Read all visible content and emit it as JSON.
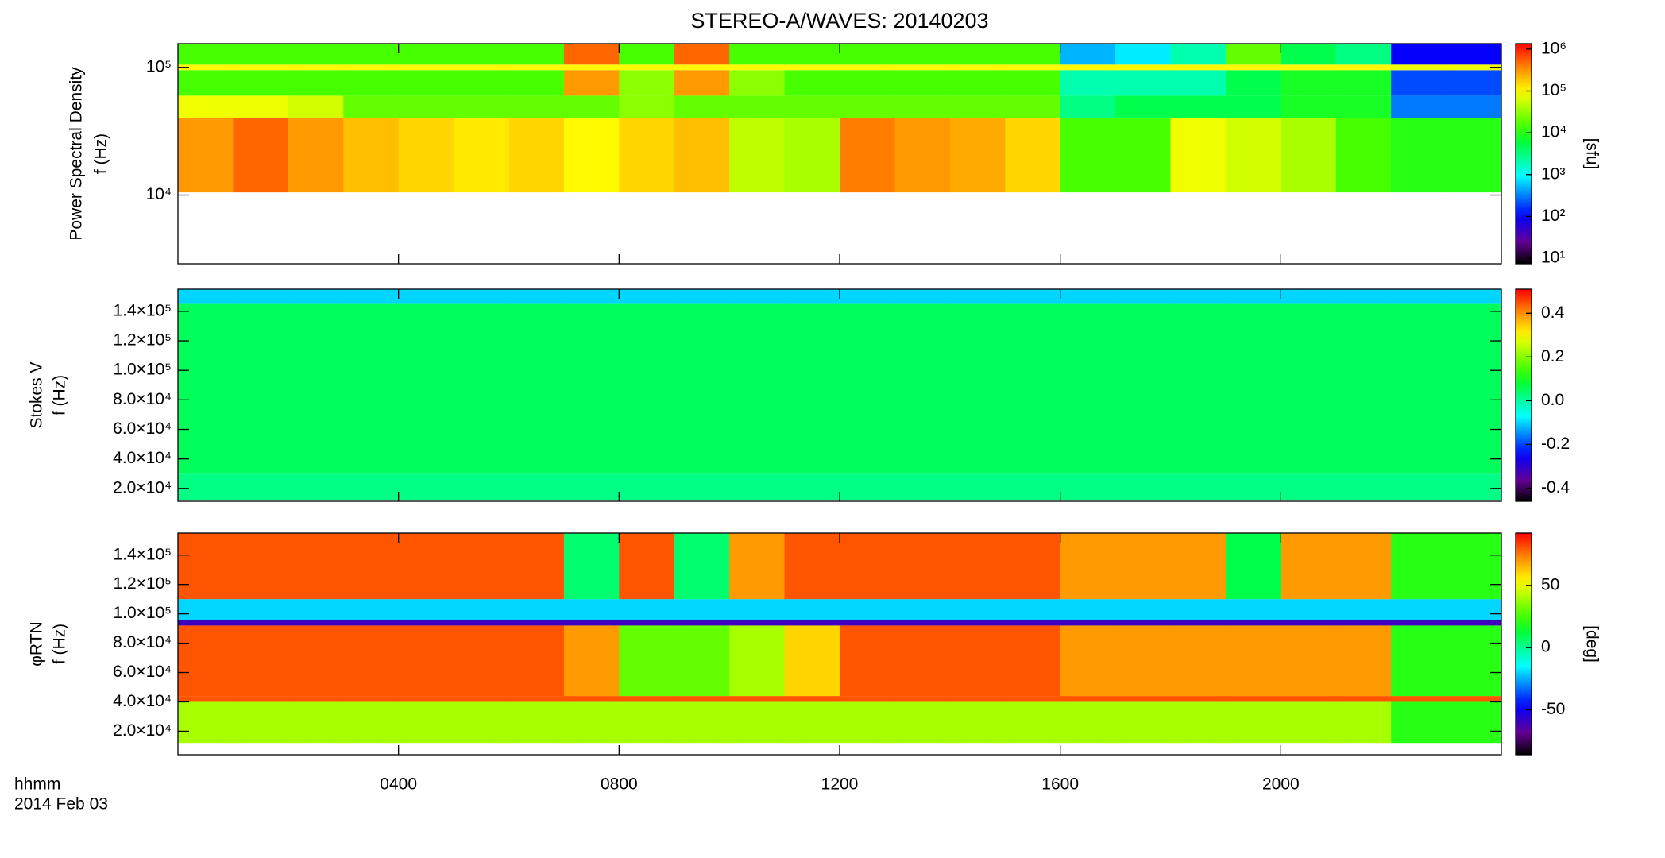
{
  "chart_data": [
    {
      "type": "heatmap",
      "title": "STEREO-A/WAVES: 20140203",
      "ylabel": [
        "Power Spectral Density",
        "f (Hz)"
      ],
      "ylog": true,
      "ylim": [
        2900,
        153000
      ],
      "yticks": [
        {
          "value": 10000,
          "label": "10⁴"
        },
        {
          "value": 100000,
          "label": "10⁵"
        }
      ],
      "xlim": [
        0,
        24
      ],
      "x_edges": [
        0,
        1,
        2,
        3,
        4,
        5,
        6,
        7,
        8,
        9,
        10,
        11,
        12,
        13,
        14,
        15,
        16,
        17,
        18,
        19,
        20,
        21,
        22,
        23,
        24
      ],
      "y_edges": [
        10500,
        40000,
        60000,
        95000,
        105000,
        153000
      ],
      "z": [
        [
          300000,
          500000,
          300000,
          200000,
          150000,
          120000,
          150000,
          100000,
          150000,
          200000,
          50000,
          40000,
          400000,
          300000,
          250000,
          150000,
          15000,
          15000,
          80000,
          60000,
          40000,
          15000,
          10000,
          10000
        ],
        [
          80000,
          80000,
          60000,
          20000,
          20000,
          20000,
          20000,
          20000,
          30000,
          20000,
          20000,
          20000,
          20000,
          20000,
          20000,
          20000,
          3000,
          5000,
          5000,
          5000,
          8000,
          8000,
          300,
          300
        ],
        [
          15000,
          15000,
          15000,
          15000,
          15000,
          15000,
          15000,
          300000,
          30000,
          300000,
          30000,
          15000,
          15000,
          15000,
          15000,
          15000,
          2000,
          2000,
          2000,
          5000,
          8000,
          8000,
          200,
          200
        ],
        [
          100000,
          100000,
          100000,
          100000,
          100000,
          100000,
          100000,
          100000,
          100000,
          100000,
          100000,
          100000,
          100000,
          100000,
          100000,
          100000,
          100000,
          100000,
          100000,
          100000,
          100000,
          100000,
          80000,
          80000
        ],
        [
          15000,
          15000,
          15000,
          15000,
          15000,
          15000,
          15000,
          500000,
          15000,
          500000,
          15000,
          15000,
          15000,
          15000,
          15000,
          15000,
          500,
          800,
          2000,
          20000,
          5000,
          3000,
          100,
          100
        ]
      ],
      "zlog": true,
      "zlim": [
        7.4,
        1350000
      ],
      "zticks": [
        {
          "value": 10,
          "label": "10¹"
        },
        {
          "value": 100,
          "label": "10²"
        },
        {
          "value": 1000,
          "label": "10³"
        },
        {
          "value": 10000,
          "label": "10⁴"
        },
        {
          "value": 100000,
          "label": "10⁵"
        },
        {
          "value": 1000000,
          "label": "10⁶"
        }
      ],
      "zlabel": "[sfu]"
    },
    {
      "type": "heatmap",
      "ylabel": [
        "Stokes V",
        "f (Hz)"
      ],
      "ylog": false,
      "ylim": [
        11300,
        155000
      ],
      "yticks": [
        {
          "value": 20000,
          "label": "2.0×10⁴"
        },
        {
          "value": 40000,
          "label": "4.0×10⁴"
        },
        {
          "value": 60000,
          "label": "6.0×10⁴"
        },
        {
          "value": 80000,
          "label": "8.0×10⁴"
        },
        {
          "value": 100000,
          "label": "1.0×10⁵"
        },
        {
          "value": 120000,
          "label": "1.2×10⁵"
        },
        {
          "value": 140000,
          "label": "1.4×10⁵"
        }
      ],
      "xlim": [
        0,
        24
      ],
      "x_edges": [
        0,
        1,
        2,
        3,
        4,
        5,
        6,
        7,
        8,
        9,
        10,
        11,
        12,
        13,
        14,
        15,
        16,
        17,
        18,
        19,
        20,
        21,
        22,
        23,
        24
      ],
      "y_edges": [
        12000,
        30000,
        145000,
        155000
      ],
      "z": [
        [
          0.02,
          0.02,
          0.02,
          0.02,
          0.02,
          0.02,
          0.02,
          0.02,
          0.02,
          0.02,
          0.02,
          0.02,
          0.02,
          0.02,
          0.02,
          0.02,
          0.02,
          0.02,
          0.02,
          0.02,
          0.02,
          0.02,
          0.02,
          0.02
        ],
        [
          0.05,
          0.05,
          0.05,
          0.05,
          0.05,
          0.05,
          0.05,
          0.05,
          0.05,
          0.05,
          0.05,
          0.05,
          0.05,
          0.05,
          0.05,
          0.05,
          0.05,
          0.05,
          0.05,
          0.05,
          0.05,
          0.05,
          0.05,
          0.05
        ],
        [
          -0.1,
          -0.1,
          -0.1,
          -0.1,
          -0.1,
          -0.1,
          -0.1,
          -0.1,
          -0.1,
          -0.1,
          -0.1,
          -0.1,
          -0.1,
          -0.1,
          -0.1,
          -0.1,
          -0.1,
          -0.1,
          -0.1,
          -0.1,
          -0.1,
          -0.1,
          -0.1,
          -0.1
        ]
      ],
      "zlog": false,
      "zlim": [
        -0.46,
        0.51
      ],
      "zticks": [
        -0.4,
        -0.2,
        {
          "value": 0,
          "label": "0.0"
        },
        0.2,
        0.4
      ],
      "zlabel": ""
    },
    {
      "type": "heatmap",
      "ylabel": [
        "φRTN",
        "f (Hz)"
      ],
      "ylog": false,
      "ylim": [
        4000,
        155000
      ],
      "yticks": [
        {
          "value": 20000,
          "label": "2.0×10⁴"
        },
        {
          "value": 40000,
          "label": "4.0×10⁴"
        },
        {
          "value": 60000,
          "label": "6.0×10⁴"
        },
        {
          "value": 80000,
          "label": "8.0×10⁴"
        },
        {
          "value": 100000,
          "label": "1.0×10⁵"
        },
        {
          "value": 120000,
          "label": "1.2×10⁵"
        },
        {
          "value": 140000,
          "label": "1.4×10⁵"
        }
      ],
      "xlim": [
        0,
        24
      ],
      "xticks": [
        {
          "value": 4,
          "label": "0400"
        },
        {
          "value": 8,
          "label": "0800"
        },
        {
          "value": 12,
          "label": "1200"
        },
        {
          "value": 16,
          "label": "1600"
        },
        {
          "value": 20,
          "label": "2000"
        }
      ],
      "xlabel": "hhmm",
      "date": "2014 Feb 03",
      "x_edges": [
        0,
        1,
        2,
        3,
        4,
        5,
        6,
        7,
        8,
        9,
        10,
        11,
        12,
        13,
        14,
        15,
        16,
        17,
        18,
        19,
        20,
        21,
        22,
        23,
        24
      ],
      "y_edges": [
        12000,
        40000,
        44000,
        92000,
        96000,
        110000,
        155000
      ],
      "z": [
        [
          40,
          40,
          40,
          40,
          40,
          40,
          40,
          40,
          40,
          40,
          40,
          40,
          40,
          40,
          40,
          40,
          40,
          40,
          40,
          40,
          40,
          40,
          20,
          20
        ],
        [
          80,
          80,
          80,
          80,
          80,
          80,
          80,
          80,
          80,
          80,
          80,
          80,
          80,
          80,
          80,
          80,
          80,
          80,
          80,
          80,
          80,
          80,
          80,
          80
        ],
        [
          80,
          80,
          80,
          80,
          80,
          80,
          80,
          70,
          30,
          30,
          40,
          60,
          80,
          80,
          80,
          80,
          70,
          70,
          70,
          70,
          70,
          70,
          20,
          20
        ],
        [
          -60,
          -60,
          -60,
          -60,
          -60,
          -60,
          -60,
          -60,
          -60,
          -60,
          -60,
          -60,
          -60,
          -60,
          -60,
          -60,
          -60,
          -60,
          -60,
          -60,
          -60,
          -60,
          -60,
          -60
        ],
        [
          -20,
          -20,
          -20,
          -20,
          -20,
          -20,
          -20,
          -20,
          -20,
          -20,
          -20,
          -20,
          -20,
          -20,
          -20,
          -20,
          -20,
          -20,
          -20,
          -20,
          -20,
          -20,
          -20,
          -20
        ],
        [
          80,
          80,
          80,
          80,
          80,
          80,
          80,
          5,
          80,
          5,
          70,
          80,
          80,
          80,
          80,
          80,
          70,
          70,
          70,
          10,
          70,
          70,
          20,
          20
        ]
      ],
      "zlog": false,
      "zlim": [
        -86,
        92
      ],
      "zticks": [
        -50,
        0,
        50
      ],
      "zlabel": "[deg]"
    }
  ]
}
